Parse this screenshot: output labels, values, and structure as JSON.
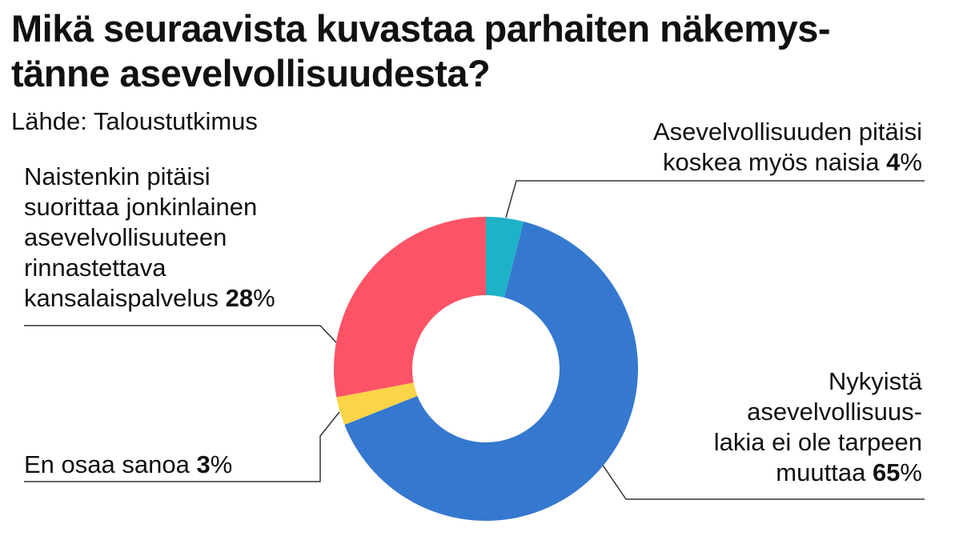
{
  "title_lines": [
    "Mikä seuraavista kuvastaa parhaiten näkemys-",
    "tänne asevelvollisuudesta?"
  ],
  "source": "Lähde: Taloustutkimus",
  "colors": {
    "women_too": "#1db2c8",
    "no_change": "#3578cf",
    "dont_know": "#fbd447",
    "civil_service": "#fc5466",
    "leader": "#333333"
  },
  "chart_data": {
    "type": "pie",
    "donut": true,
    "title": "Mikä seuraavista kuvastaa parhaiten näkemystänne asevelvollisuudesta?",
    "unit": "%",
    "slices": [
      {
        "key": "women_too",
        "label_lines": [
          "Asevelvollisuuden pitäisi",
          "koskea myös naisia"
        ],
        "value": 4,
        "value_text": "4"
      },
      {
        "key": "no_change",
        "label_lines": [
          "Nykyistä",
          "asevelvollisuus-",
          "lakia ei ole tarpeen",
          "muuttaa"
        ],
        "value": 65,
        "value_text": "65"
      },
      {
        "key": "dont_know",
        "label_lines": [
          "En osaa sanoa"
        ],
        "value": 3,
        "value_text": "3"
      },
      {
        "key": "civil_service",
        "label_lines": [
          "Naistenkin pitäisi",
          "suorittaa jonkinlainen",
          "asevelvollisuuteen",
          "rinnastettava",
          "kansalaispalvelus"
        ],
        "value": 28,
        "value_text": "28"
      }
    ]
  }
}
